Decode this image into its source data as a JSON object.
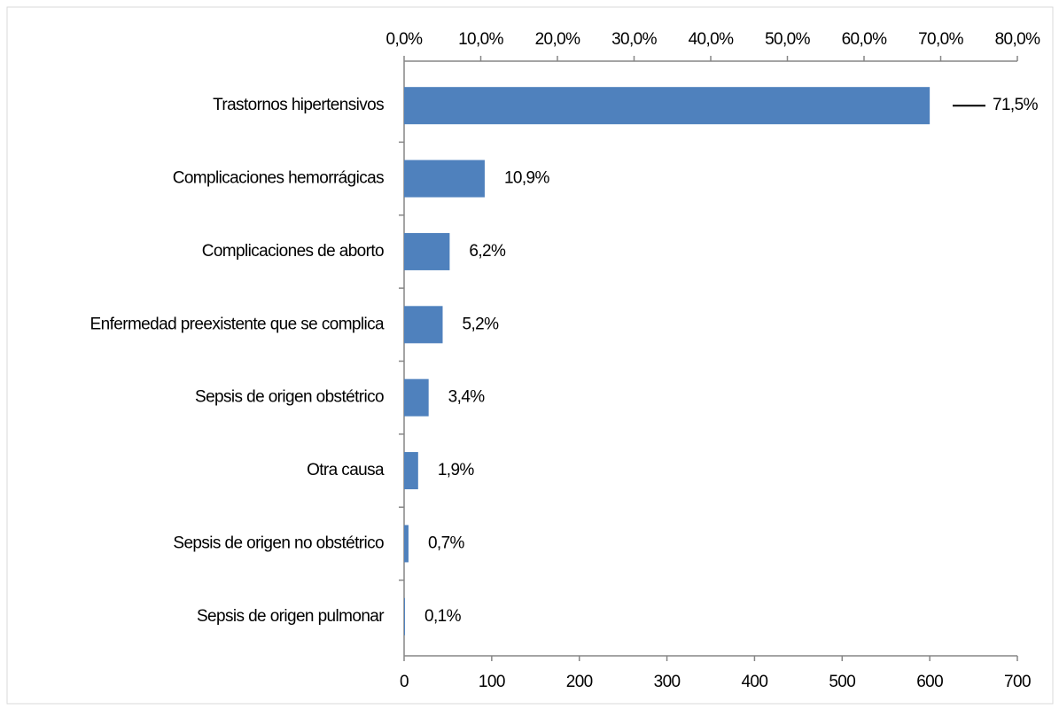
{
  "chart_data": {
    "type": "bar",
    "orientation": "horizontal",
    "categories": [
      "Trastornos hipertensivos",
      "Complicaciones hemorrágicas",
      "Complicaciones de aborto",
      "Enfermedad preexistente que se complica",
      "Sepsis de origen obstétrico",
      "Otra causa",
      "Sepsis de origen no obstétrico",
      "Sepsis de origen pulmonar"
    ],
    "values": [
      600,
      92,
      52,
      44,
      28,
      16,
      5,
      1
    ],
    "percentages": [
      71.5,
      10.9,
      6.2,
      5.2,
      3.4,
      1.9,
      0.7,
      0.1
    ],
    "percentage_labels": [
      "71,5%",
      "10,9%",
      "6,2%",
      "5,2%",
      "3,4%",
      "1,9%",
      "0,7%",
      "0,1%"
    ],
    "color": "#4f81bd",
    "xlim": [
      0,
      700
    ],
    "xticks": [
      0,
      100,
      200,
      300,
      400,
      500,
      600,
      700
    ],
    "x2lim": [
      0,
      80
    ],
    "x2ticks": [
      {
        "value": 0,
        "label": "0,0%"
      },
      {
        "value": 10,
        "label": "10,0%"
      },
      {
        "value": 20,
        "label": "20,0%"
      },
      {
        "value": 30,
        "label": "30,0%"
      },
      {
        "value": 40,
        "label": "40,0%"
      },
      {
        "value": 50,
        "label": "50,0%"
      },
      {
        "value": 60,
        "label": "60,0%"
      },
      {
        "value": 70,
        "label": "70,0%"
      },
      {
        "value": 80,
        "label": "80,0%"
      }
    ],
    "grid": false
  }
}
